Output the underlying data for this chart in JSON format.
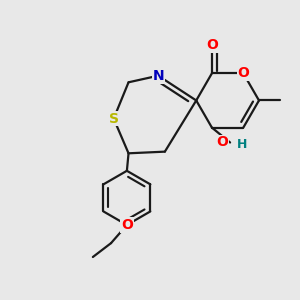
{
  "bg_color": "#e8e8e8",
  "bond_color": "#1a1a1a",
  "bond_lw": 1.6,
  "colors": {
    "O": "#ff0000",
    "N": "#0000bb",
    "S": "#b8b800",
    "C": "#1a1a1a",
    "H": "#008080"
  },
  "figsize": [
    3.0,
    3.0
  ],
  "dpi": 100,
  "xlim": [
    0.05,
    0.95
  ],
  "ylim": [
    0.05,
    0.95
  ]
}
